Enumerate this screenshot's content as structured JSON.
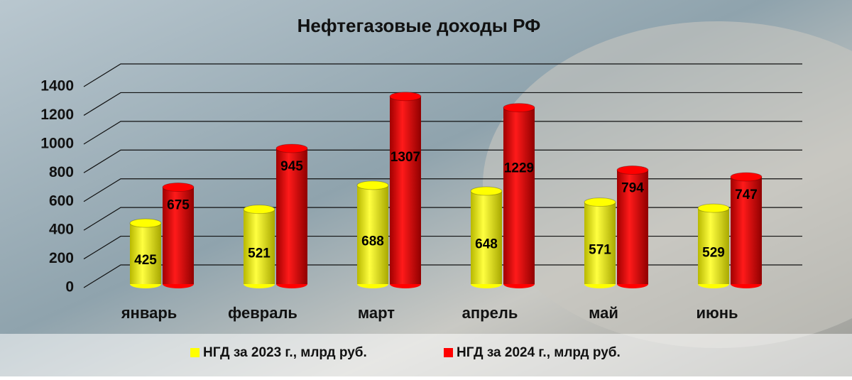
{
  "chart_data": {
    "type": "bar",
    "title": "Нефтегазовые доходы РФ",
    "categories": [
      "январь",
      "февраль",
      "март",
      "апрель",
      "май",
      "июнь"
    ],
    "series": [
      {
        "name": "НГД за 2023 г., млрд руб.",
        "color": "#ffff00",
        "values": [
          425,
          521,
          688,
          648,
          571,
          529
        ]
      },
      {
        "name": "НГД за 2024 г., млрд руб.",
        "color": "#ff0000",
        "values": [
          675,
          945,
          1307,
          1229,
          794,
          747
        ]
      }
    ],
    "ylim": [
      0,
      1400
    ],
    "yticks": [
      0,
      200,
      400,
      600,
      800,
      1000,
      1200,
      1400
    ],
    "grid": true,
    "legend": "bottom"
  }
}
